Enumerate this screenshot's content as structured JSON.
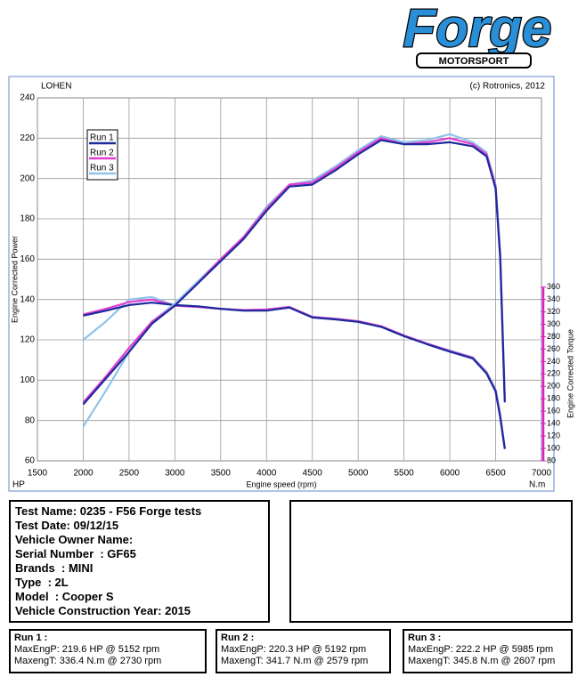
{
  "logo": {
    "name": "Forge",
    "tagline": "MOTORSPORT"
  },
  "chart_data": {
    "type": "line",
    "title": "LOHEN",
    "copyright": "(c) Rotronics, 2012",
    "x_label": "Engine speed (rpm)",
    "y_label": "Engine Corrected Power",
    "y2_label": "Engine Corrected Torque",
    "y_unit": "HP",
    "y2_unit": "N.m",
    "x": [
      2000,
      2250,
      2500,
      2750,
      3000,
      3250,
      3500,
      3750,
      4000,
      4250,
      4500,
      4750,
      5000,
      5250,
      5500,
      5750,
      6000,
      6250,
      6400,
      6500,
      6550,
      6600
    ],
    "series": [
      {
        "name": "Run 1",
        "color": "#1c2a9c",
        "values": [
          88,
          101,
          114,
          128,
          137,
          148,
          159,
          170,
          184,
          196,
          197,
          204,
          212,
          219,
          217,
          217,
          218,
          216,
          211,
          195,
          160,
          89
        ]
      },
      {
        "name": "Run 2",
        "color": "#e23fd0",
        "values": [
          89,
          102,
          116,
          129,
          137,
          148,
          160,
          171,
          185,
          197,
          198,
          205,
          213,
          220,
          217,
          218,
          220,
          217,
          212,
          196,
          162,
          90
        ]
      },
      {
        "name": "Run 3",
        "color": "#8fc3ea",
        "values": [
          77,
          95,
          114,
          129,
          138,
          149,
          160,
          171,
          186,
          197,
          199,
          206,
          214,
          221,
          218,
          219,
          222,
          218,
          213,
          197,
          163,
          92
        ]
      },
      {
        "name": "Run 1",
        "color": "#1c2a9c",
        "axis": "y2",
        "values": [
          314,
          322,
          331,
          335,
          331,
          329,
          325,
          322,
          322,
          327,
          311,
          308,
          304,
          296,
          281,
          268,
          256,
          245,
          221,
          192,
          150,
          99
        ]
      },
      {
        "name": "Run 2",
        "color": "#e23fd0",
        "axis": "y2",
        "values": [
          316,
          325,
          336,
          340,
          330,
          328,
          325,
          323,
          324,
          328,
          312,
          309,
          305,
          297,
          282,
          269,
          257,
          246,
          222,
          193,
          152,
          100
        ]
      },
      {
        "name": "Run 3",
        "color": "#8fc3ea",
        "axis": "y2",
        "values": [
          275,
          305,
          340,
          344,
          330,
          328,
          325,
          322,
          323,
          327,
          312,
          309,
          305,
          297,
          282,
          269,
          258,
          247,
          224,
          195,
          155,
          101
        ]
      }
    ],
    "xlim": [
      1500,
      7000
    ],
    "xticks": [
      1500,
      2000,
      2500,
      3000,
      3500,
      4000,
      4500,
      5000,
      5500,
      6000,
      6500,
      7000
    ],
    "ylim": [
      60,
      240
    ],
    "yticks": [
      60,
      80,
      100,
      120,
      140,
      160,
      180,
      200,
      220,
      240
    ],
    "y2lim": [
      80,
      665
    ],
    "y2ticks": [
      80,
      100,
      120,
      140,
      160,
      180,
      200,
      220,
      240,
      260,
      280,
      300,
      320,
      340,
      360
    ],
    "y2_color": "#e020c8",
    "grid": true,
    "legend": "upper left"
  },
  "test_info": [
    "Test Name: 0235 - F56 Forge tests",
    "Test Date: 09/12/15",
    "Vehicle Owner Name:",
    "Serial Number  : GF65",
    "Brands  : MINI",
    "Type  : 2L",
    "Model  : Cooper S",
    "Vehicle Construction Year: 2015"
  ],
  "run_summaries": [
    {
      "title": "Run 1 :",
      "power": "MaxEngP: 219.6 HP @ 5152 rpm",
      "torque": "MaxengT: 336.4 N.m @ 2730 rpm"
    },
    {
      "title": "Run 2 :",
      "power": "MaxEngP: 220.3 HP @ 5192 rpm",
      "torque": "MaxengT: 341.7 N.m @ 2579 rpm"
    },
    {
      "title": "Run 3 :",
      "power": "MaxEngP: 222.2 HP @ 5985 rpm",
      "torque": "MaxengT: 345.8 N.m @ 2607 rpm"
    }
  ]
}
